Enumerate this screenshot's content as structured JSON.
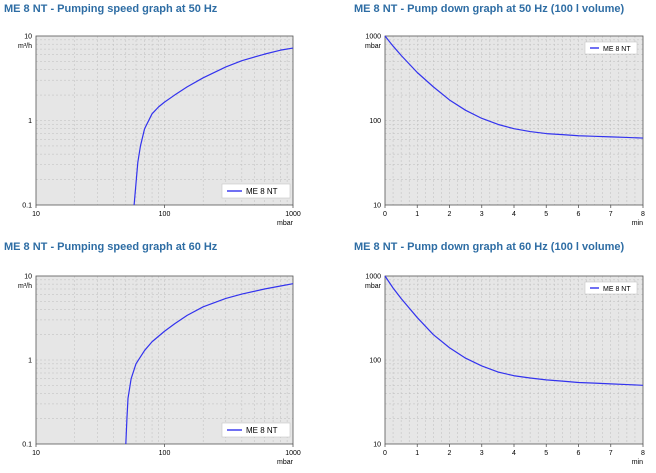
{
  "colors": {
    "title": "#2e6da4",
    "series": "#3333ee",
    "plot_bg": "#e6e6e6",
    "grid": "#bdbdbd"
  },
  "chart_data": [
    {
      "type": "line",
      "title": "ME 8 NT - Pumping speed graph at 50 Hz",
      "x_scale": "log",
      "y_scale": "log",
      "xlim": [
        10,
        1000
      ],
      "ylim": [
        0.1,
        10
      ],
      "x_ticks": [
        "10",
        "100",
        "1000"
      ],
      "y_ticks": [
        "0.1",
        "1",
        "10"
      ],
      "xlabel": "mbar",
      "ylabel": "m³/h",
      "grid": true,
      "legend_position": "bottom-right",
      "series": [
        {
          "name": "ME 8 NT",
          "x": [
            58,
            60,
            62,
            65,
            70,
            80,
            90,
            100,
            120,
            150,
            200,
            300,
            400,
            600,
            800,
            1000
          ],
          "y": [
            0.1,
            0.18,
            0.32,
            0.5,
            0.8,
            1.2,
            1.45,
            1.65,
            2.0,
            2.5,
            3.2,
            4.3,
            5.1,
            6.1,
            6.8,
            7.2
          ]
        }
      ]
    },
    {
      "type": "line",
      "title": "ME 8 NT - Pump down graph at 50 Hz (100 l volume)",
      "x_scale": "linear",
      "y_scale": "log",
      "xlim": [
        0,
        8
      ],
      "ylim": [
        10,
        1000
      ],
      "x_ticks": [
        "0",
        "1",
        "2",
        "3",
        "4",
        "5",
        "6",
        "7",
        "8"
      ],
      "y_ticks": [
        "10",
        "100",
        "1000"
      ],
      "xlabel": "min",
      "ylabel": "mbar",
      "grid": true,
      "legend_position": "top-right",
      "series": [
        {
          "name": "ME 8 NT",
          "x": [
            0,
            0.25,
            0.5,
            1,
            1.5,
            2,
            2.5,
            3,
            3.5,
            4,
            4.5,
            5,
            5.5,
            6,
            6.5,
            7,
            7.5,
            8
          ],
          "y": [
            1000,
            760,
            590,
            370,
            250,
            175,
            132,
            106,
            90,
            80,
            74,
            70,
            68,
            66,
            65,
            64,
            63,
            62
          ]
        }
      ]
    },
    {
      "type": "line",
      "title": "ME 8 NT - Pumping speed graph at 60 Hz",
      "x_scale": "log",
      "y_scale": "log",
      "xlim": [
        10,
        1000
      ],
      "ylim": [
        0.1,
        10
      ],
      "x_ticks": [
        "10",
        "100",
        "1000"
      ],
      "y_ticks": [
        "0.1",
        "1",
        "10"
      ],
      "xlabel": "mbar",
      "ylabel": "m³/h",
      "grid": true,
      "legend_position": "bottom-right",
      "series": [
        {
          "name": "ME 8 NT",
          "x": [
            50,
            51,
            52,
            55,
            60,
            70,
            80,
            100,
            120,
            150,
            200,
            300,
            400,
            600,
            800,
            1000
          ],
          "y": [
            0.1,
            0.2,
            0.35,
            0.6,
            0.9,
            1.3,
            1.65,
            2.2,
            2.7,
            3.4,
            4.3,
            5.4,
            6.1,
            7.0,
            7.6,
            8.1
          ]
        }
      ]
    },
    {
      "type": "line",
      "title": "ME 8 NT - Pump down graph at 60 Hz (100 l volume)",
      "x_scale": "linear",
      "y_scale": "log",
      "xlim": [
        0,
        8
      ],
      "ylim": [
        10,
        1000
      ],
      "x_ticks": [
        "0",
        "1",
        "2",
        "3",
        "4",
        "5",
        "6",
        "7",
        "8"
      ],
      "y_ticks": [
        "10",
        "100",
        "1000"
      ],
      "xlabel": "min",
      "ylabel": "mbar",
      "grid": true,
      "legend_position": "top-right",
      "series": [
        {
          "name": "ME 8 NT",
          "x": [
            0,
            0.25,
            0.5,
            1,
            1.5,
            2,
            2.5,
            3,
            3.5,
            4,
            4.5,
            5,
            5.5,
            6,
            6.5,
            7,
            7.5,
            8
          ],
          "y": [
            1000,
            720,
            540,
            320,
            200,
            140,
            105,
            85,
            72,
            65,
            61,
            58,
            56,
            54,
            53,
            52,
            51,
            50
          ]
        }
      ]
    }
  ]
}
